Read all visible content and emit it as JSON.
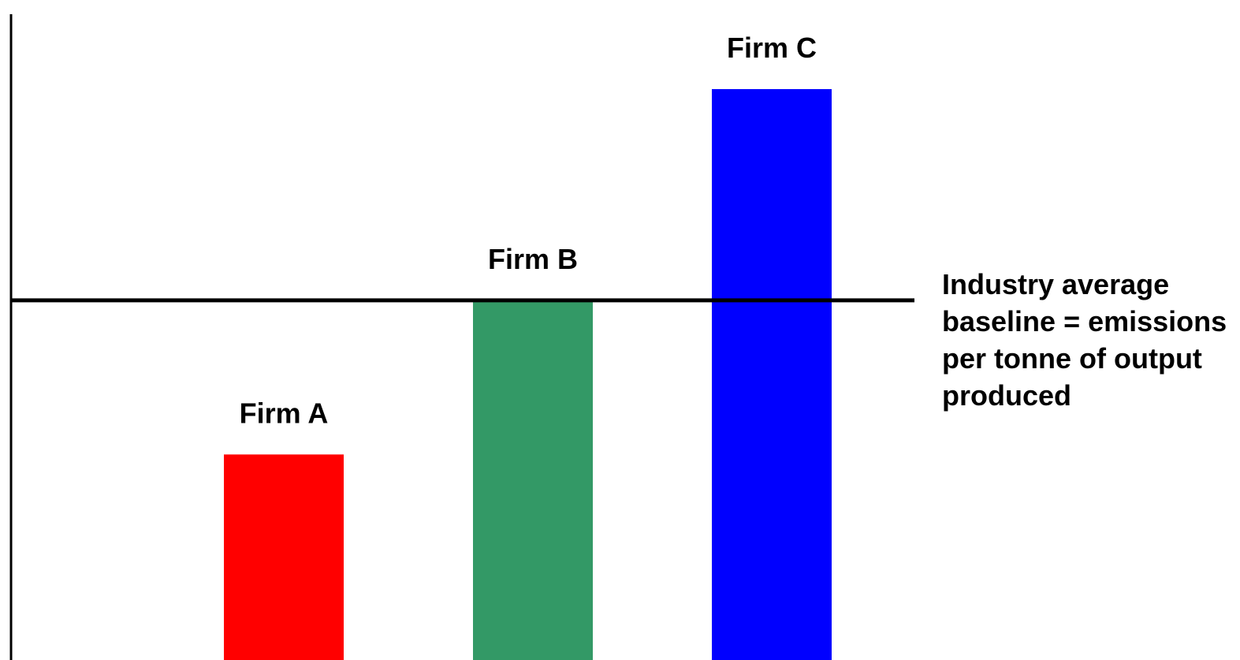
{
  "chart_data": {
    "type": "bar",
    "categories": [
      "Firm A",
      "Firm B",
      "Firm C"
    ],
    "values": [
      0.36,
      0.63,
      1.0
    ],
    "colors": [
      "#ff0000",
      "#339966",
      "#0000ff"
    ],
    "baseline": {
      "value": 0.63,
      "label_lines": [
        "Industry average",
        "baseline = emissions",
        "per tonne of output",
        "produced"
      ]
    },
    "title": "",
    "xlabel": "",
    "ylabel": "",
    "ylim": [
      0,
      1.0
    ],
    "grid": false,
    "legend": "none"
  }
}
